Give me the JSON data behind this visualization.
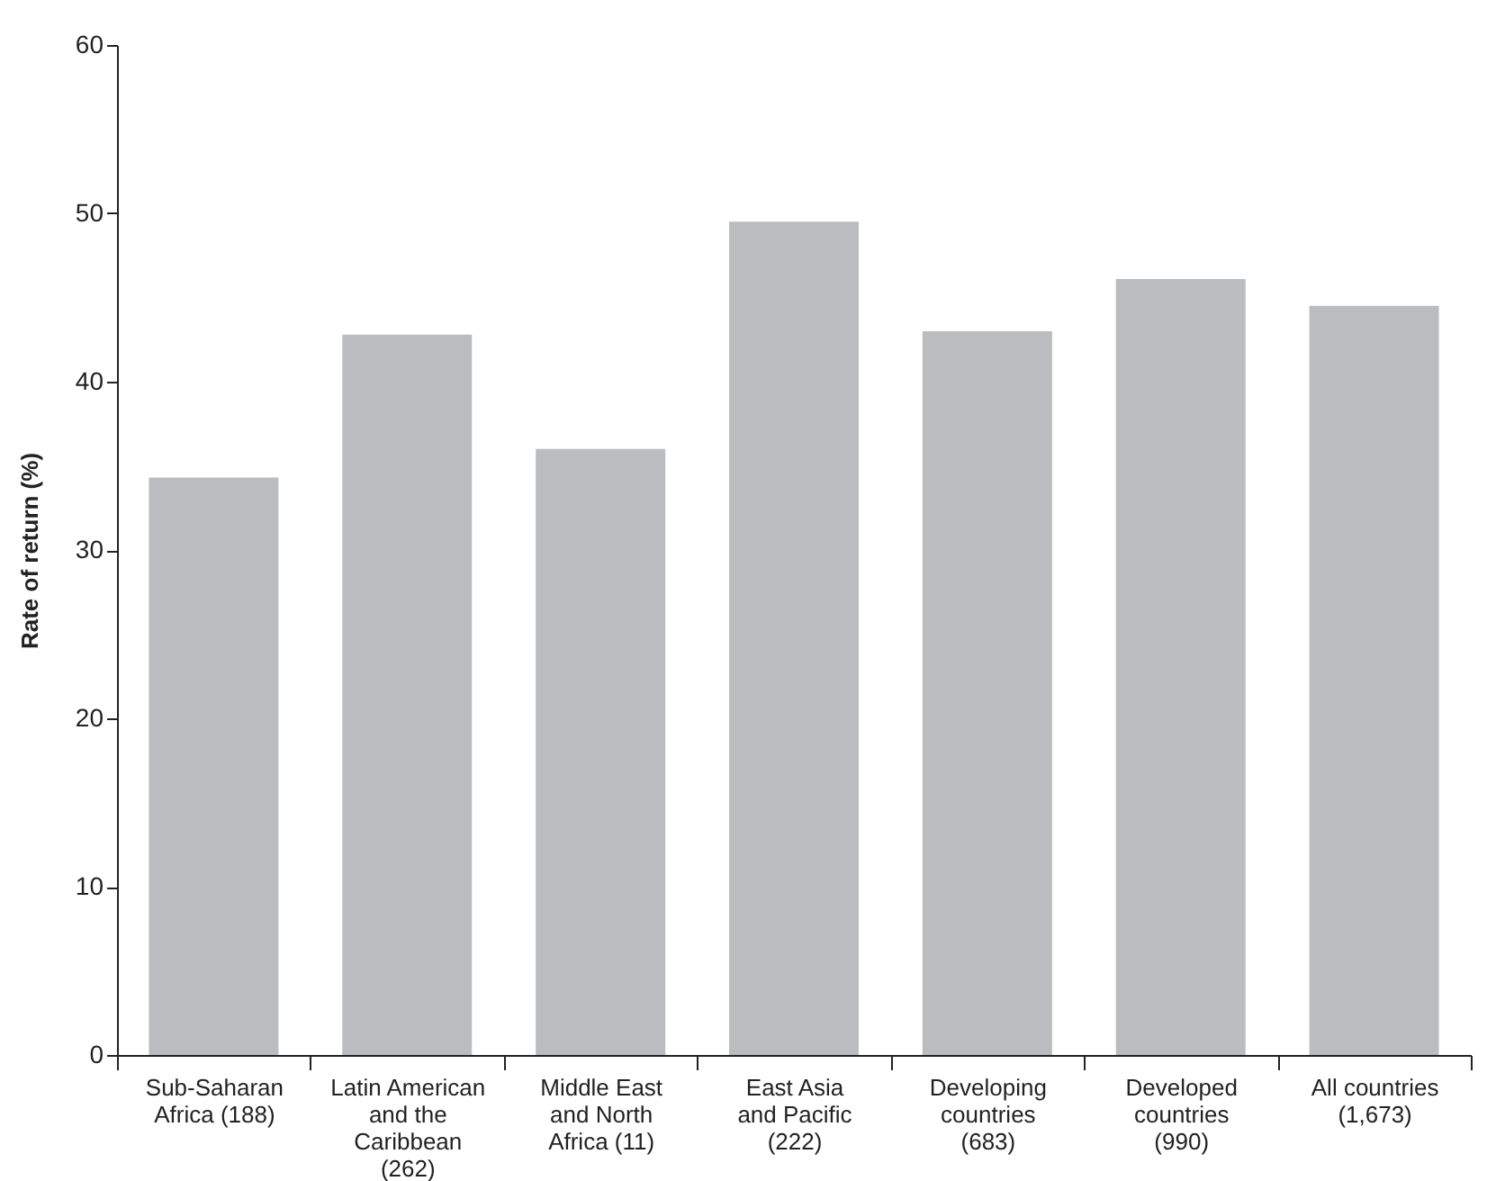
{
  "chart_data": {
    "type": "bar",
    "ylabel": "Rate of return (%)",
    "categories": [
      "Sub-Saharan\nAfrica (188)",
      "Latin American\nand the\nCaribbean\n(262)",
      "Middle East\nand North\nAfrica (11)",
      "East Asia\nand Pacific\n(222)",
      "Developing\ncountries\n(683)",
      "Developed\ncountries\n(990)",
      "All countries\n(1,673)"
    ],
    "values": [
      34.3,
      42.8,
      36.0,
      49.5,
      43.0,
      46.1,
      44.5
    ],
    "color": "#bbbcc0",
    "ylim": [
      0,
      60
    ],
    "yticks": [
      0,
      10,
      20,
      30,
      40,
      50,
      60
    ],
    "grid": false
  }
}
